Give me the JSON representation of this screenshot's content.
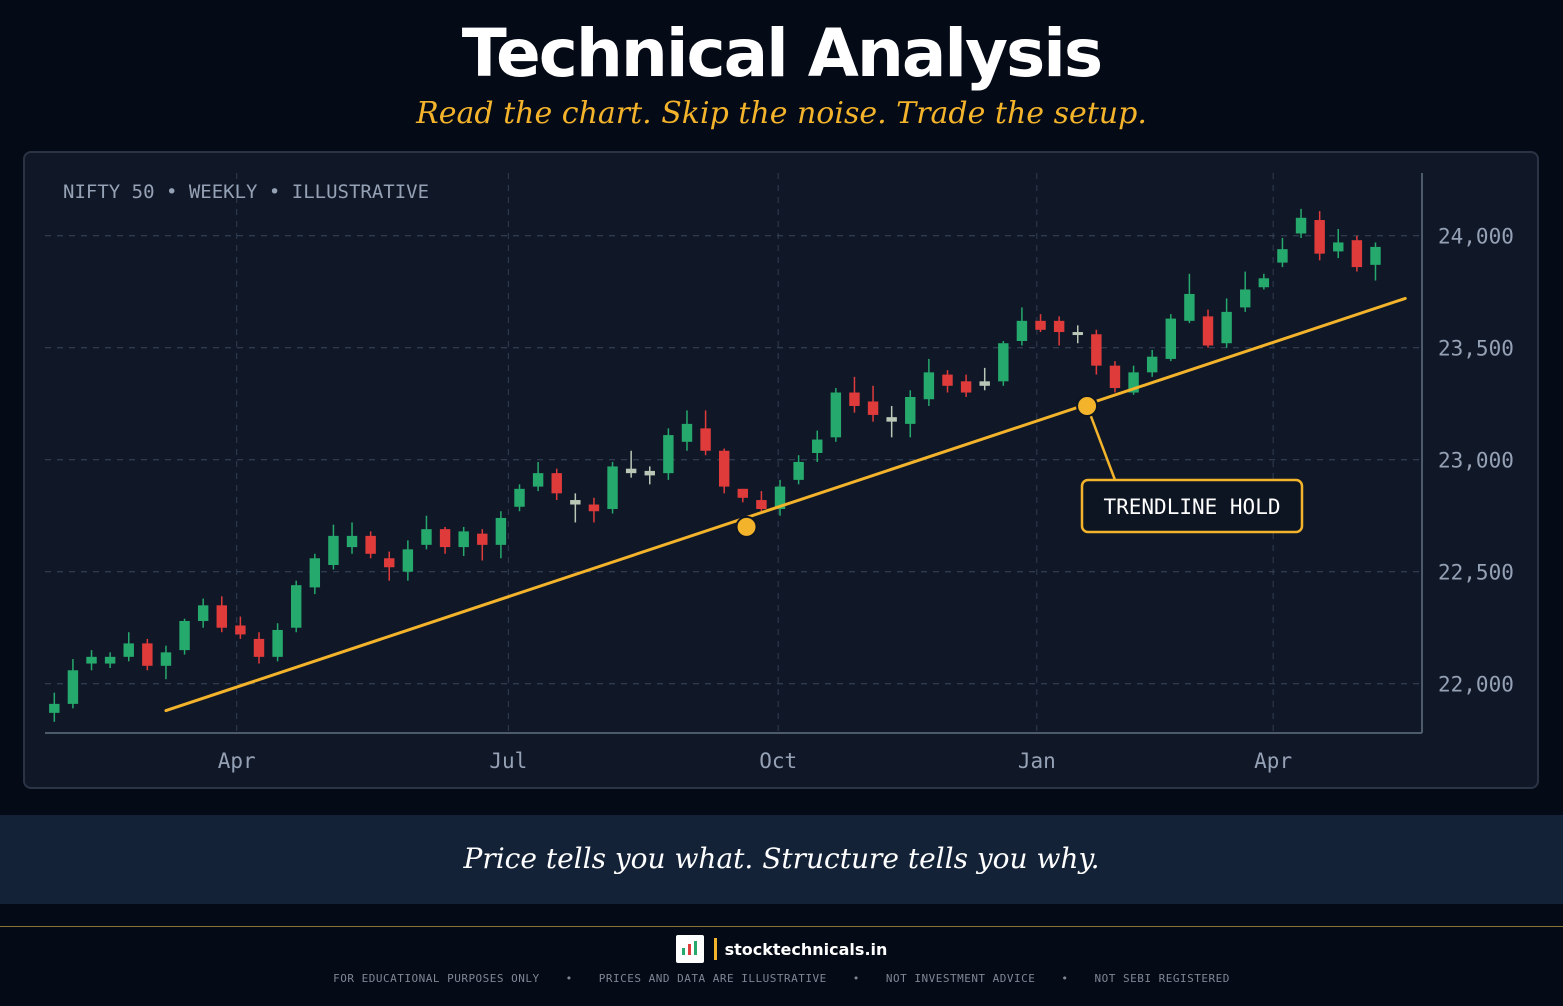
{
  "header": {
    "title": "Technical Analysis",
    "subtitle": "Read the chart. Skip the noise. Trade the setup."
  },
  "chart_data": {
    "type": "candlestick",
    "label": "NIFTY 50 • WEEKLY • ILLUSTRATIVE",
    "y_ticks": [
      "24,000",
      "23,500",
      "23,000",
      "22,500",
      "22,000"
    ],
    "y_tick_values": [
      24000,
      23500,
      23000,
      22500,
      22000
    ],
    "x_ticks": [
      "Apr",
      "Jul",
      "Oct",
      "Jan",
      "Apr"
    ],
    "x_tick_weeks": [
      9.8,
      24.4,
      38.9,
      52.8,
      65.5
    ],
    "ylim": [
      21780,
      24280
    ],
    "xlim": [
      -0.5,
      73.5
    ],
    "grid": true,
    "candles": [
      [
        21870,
        21910,
        21830,
        21960
      ],
      [
        21910,
        22060,
        21890,
        22110
      ],
      [
        22090,
        22120,
        22060,
        22150
      ],
      [
        22090,
        22120,
        22070,
        22140
      ],
      [
        22120,
        22180,
        22100,
        22230
      ],
      [
        22180,
        22080,
        22060,
        22200
      ],
      [
        22080,
        22140,
        22020,
        22170
      ],
      [
        22150,
        22280,
        22130,
        22290
      ],
      [
        22280,
        22350,
        22250,
        22380
      ],
      [
        22350,
        22250,
        22230,
        22390
      ],
      [
        22260,
        22220,
        22200,
        22300
      ],
      [
        22200,
        22120,
        22090,
        22230
      ],
      [
        22120,
        22240,
        22100,
        22270
      ],
      [
        22250,
        22440,
        22230,
        22460
      ],
      [
        22430,
        22560,
        22400,
        22580
      ],
      [
        22530,
        22660,
        22510,
        22710
      ],
      [
        22610,
        22660,
        22580,
        22720
      ],
      [
        22660,
        22580,
        22560,
        22680
      ],
      [
        22560,
        22520,
        22460,
        22590
      ],
      [
        22500,
        22600,
        22460,
        22640
      ],
      [
        22620,
        22690,
        22600,
        22750
      ],
      [
        22690,
        22610,
        22580,
        22700
      ],
      [
        22610,
        22680,
        22570,
        22700
      ],
      [
        22670,
        22620,
        22550,
        22690
      ],
      [
        22620,
        22740,
        22560,
        22770
      ],
      [
        22790,
        22870,
        22770,
        22890
      ],
      [
        22880,
        22940,
        22860,
        22990
      ],
      [
        22940,
        22850,
        22820,
        22960
      ],
      [
        22820,
        22800,
        22720,
        22850
      ],
      [
        22800,
        22770,
        22720,
        22830
      ],
      [
        22780,
        22970,
        22760,
        22990
      ],
      [
        22960,
        22940,
        22920,
        23040
      ],
      [
        22950,
        22930,
        22890,
        22970
      ],
      [
        22940,
        23110,
        22910,
        23140
      ],
      [
        23080,
        23160,
        23040,
        23220
      ],
      [
        23140,
        23040,
        23020,
        23220
      ],
      [
        23040,
        22880,
        22850,
        23050
      ],
      [
        22870,
        22830,
        22810,
        22870
      ],
      [
        22820,
        22780,
        22770,
        22860
      ],
      [
        22780,
        22880,
        22750,
        22910
      ],
      [
        22910,
        22990,
        22890,
        23020
      ],
      [
        23030,
        23090,
        22990,
        23130
      ],
      [
        23100,
        23300,
        23080,
        23320
      ],
      [
        23300,
        23240,
        23210,
        23370
      ],
      [
        23260,
        23200,
        23170,
        23330
      ],
      [
        23190,
        23170,
        23100,
        23240
      ],
      [
        23160,
        23280,
        23100,
        23310
      ],
      [
        23270,
        23390,
        23240,
        23450
      ],
      [
        23380,
        23330,
        23300,
        23400
      ],
      [
        23350,
        23300,
        23280,
        23380
      ],
      [
        23330,
        23350,
        23310,
        23410
      ],
      [
        23350,
        23520,
        23330,
        23530
      ],
      [
        23530,
        23620,
        23510,
        23680
      ],
      [
        23620,
        23580,
        23570,
        23650
      ],
      [
        23620,
        23570,
        23510,
        23640
      ],
      [
        23570,
        23560,
        23520,
        23600
      ],
      [
        23560,
        23420,
        23380,
        23580
      ],
      [
        23420,
        23320,
        23300,
        23440
      ],
      [
        23300,
        23390,
        23290,
        23420
      ],
      [
        23390,
        23460,
        23370,
        23490
      ],
      [
        23450,
        23630,
        23440,
        23650
      ],
      [
        23620,
        23740,
        23610,
        23830
      ],
      [
        23640,
        23510,
        23500,
        23670
      ],
      [
        23520,
        23660,
        23500,
        23720
      ],
      [
        23680,
        23760,
        23660,
        23840
      ],
      [
        23770,
        23810,
        23760,
        23830
      ],
      [
        23880,
        23940,
        23860,
        23990
      ],
      [
        24010,
        24080,
        23990,
        24120
      ],
      [
        24070,
        23920,
        23890,
        24110
      ],
      [
        23930,
        23970,
        23900,
        24030
      ],
      [
        23980,
        23860,
        23840,
        24000
      ],
      [
        23870,
        23950,
        23800,
        23970
      ]
    ],
    "trendline": {
      "from": [
        6,
        21880
      ],
      "to": [
        72.6,
        23720
      ]
    },
    "touch_points": [
      [
        37.2,
        22700
      ],
      [
        55.5,
        23240
      ]
    ],
    "annotation": {
      "text": "TRENDLINE HOLD",
      "target_point": 1
    },
    "colors": {
      "up": "#26a96c",
      "down": "#e03b3b",
      "doji": "#b9c7b6",
      "trendline": "#f3b32a",
      "grid": "#39465a",
      "axis": "#4d5a6c",
      "tick_text": "#95a1b5",
      "label_text": "#95a1b5"
    }
  },
  "tagline": "Price tells you what. Structure tells you why.",
  "footer": {
    "brand": "stocktechnicals.in",
    "disclaimers": [
      "FOR EDUCATIONAL PURPOSES ONLY",
      "PRICES AND DATA ARE ILLUSTRATIVE",
      "NOT INVESTMENT ADVICE",
      "NOT SEBI REGISTERED"
    ],
    "separator": "•"
  }
}
